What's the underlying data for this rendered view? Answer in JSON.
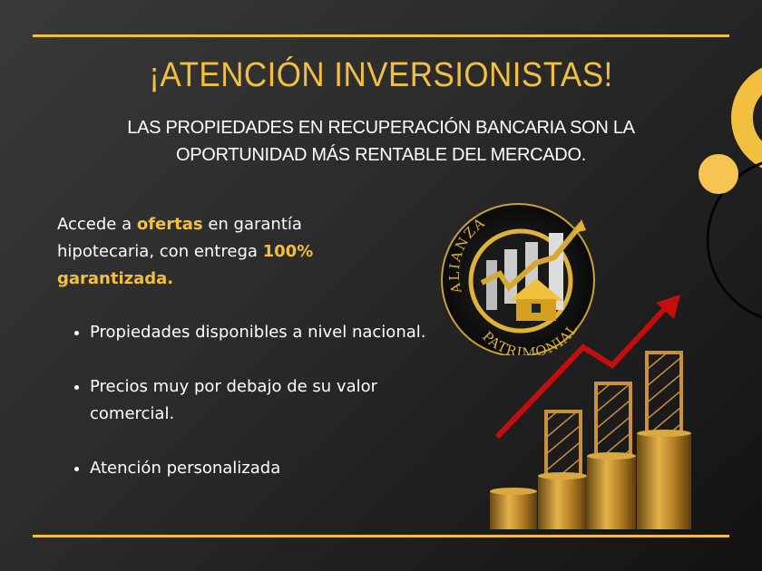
{
  "header": {
    "title": "¡ATENCIÓN INVERSIONISTAS!",
    "subtitle_line1": "LAS PROPIEDADES EN RECUPERACIÓN BANCARIA SON LA",
    "subtitle_line2": "OPORTUNIDAD MÁS RENTABLE DEL MERCADO."
  },
  "intro": {
    "p1": "Accede a ",
    "h1": "ofertas",
    "p2": " en garantía hipotecaria, con entrega ",
    "h2": "100% garantizada."
  },
  "bullets": [
    "Propiedades disponibles a nivel nacional.",
    "Precios muy por debajo de su valor comercial.",
    "Atención personalizada"
  ],
  "logo": {
    "top_text": "ALIANZA",
    "bottom_text": "PATRIMONIAL"
  },
  "colors": {
    "accent": "#f2bf3f",
    "arrow": "#c40d0d",
    "background": "#2a2a2a"
  }
}
